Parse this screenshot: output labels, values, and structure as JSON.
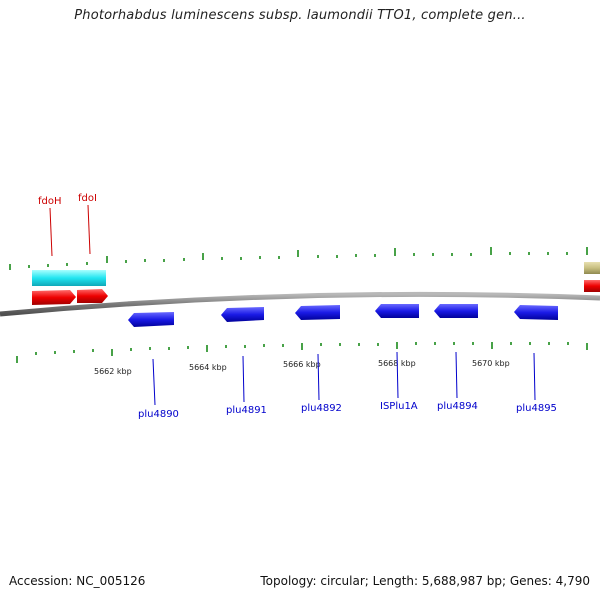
{
  "title": "Photorhabdus luminescens subsp. laumondii TTO1, complete gen...",
  "footer": {
    "accession": "Accession: NC_005126",
    "summary": "Topology: circular; Length: 5,688,987 bp; Genes: 4,790"
  },
  "colors": {
    "forward_label": "#cc0000",
    "reverse_label": "#0000cc",
    "reverse_gene": "#1a1ae6",
    "forward_gene_red": "#ee0000",
    "forward_gene_cyan": "#22e5f0",
    "tan_feature": "#c8bf80",
    "tick_green": "#1a8a1a",
    "backbone": "#808080"
  },
  "scale": {
    "labels": [
      "5662 kbp",
      "5664 kbp",
      "5666 kbp",
      "5668 kbp",
      "5670 kbp"
    ]
  },
  "genes_top": [
    {
      "name": "fdoH",
      "label": "fdoH"
    },
    {
      "name": "fdoI",
      "label": "fdoI"
    }
  ],
  "genes_bottom": [
    {
      "name": "plu4890",
      "label": "plu4890"
    },
    {
      "name": "plu4891",
      "label": "plu4891"
    },
    {
      "name": "plu4892",
      "label": "plu4892"
    },
    {
      "name": "isplu1a",
      "label": "ISPlu1A"
    },
    {
      "name": "plu4894",
      "label": "plu4894"
    },
    {
      "name": "plu4895",
      "label": "plu4895"
    }
  ]
}
